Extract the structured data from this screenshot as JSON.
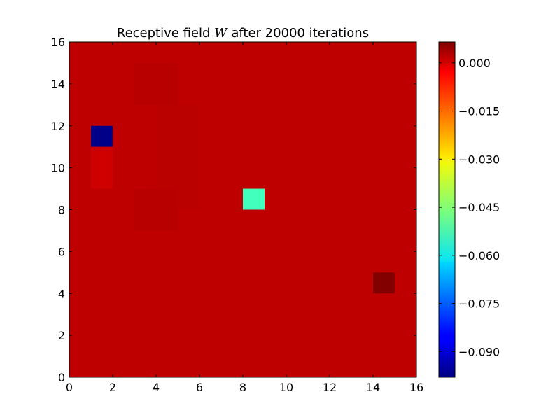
{
  "chart_data": {
    "type": "heatmap",
    "title_prefix": "Receptive field ",
    "title_variable": "W",
    "title_suffix": " after 20000 iterations",
    "xlabel": "",
    "ylabel": "",
    "xlim": [
      0,
      16
    ],
    "ylim": [
      0,
      16
    ],
    "x_ticks": [
      0,
      2,
      4,
      6,
      8,
      10,
      12,
      14,
      16
    ],
    "y_ticks": [
      0,
      2,
      4,
      6,
      8,
      10,
      12,
      14,
      16
    ],
    "background_value": 0.0,
    "cells": [
      {
        "x": 1,
        "y": 11,
        "value": -0.097
      },
      {
        "x": 8,
        "y": 8,
        "value": -0.052
      },
      {
        "x": 14,
        "y": 4,
        "value": 0.0062
      },
      {
        "x": 1,
        "y": 10,
        "value": -0.0015
      },
      {
        "x": 1,
        "y": 9,
        "value": -0.0015
      },
      {
        "x": 3,
        "y": 14,
        "value": 0.0007
      },
      {
        "x": 4,
        "y": 14,
        "value": 0.0007
      },
      {
        "x": 3,
        "y": 13,
        "value": 0.0007
      },
      {
        "x": 4,
        "y": 13,
        "value": 0.0007
      },
      {
        "x": 4,
        "y": 12,
        "value": 0.0004
      },
      {
        "x": 5,
        "y": 12,
        "value": 0.0004
      },
      {
        "x": 4,
        "y": 11,
        "value": 0.0004
      },
      {
        "x": 5,
        "y": 11,
        "value": 0.0004
      },
      {
        "x": 4,
        "y": 10,
        "value": 0.0004
      },
      {
        "x": 5,
        "y": 10,
        "value": 0.0004
      },
      {
        "x": 4,
        "y": 9,
        "value": 0.0004
      },
      {
        "x": 5,
        "y": 9,
        "value": 0.0004
      },
      {
        "x": 3,
        "y": 8,
        "value": 0.0007
      },
      {
        "x": 4,
        "y": 8,
        "value": 0.0007
      },
      {
        "x": 5,
        "y": 8,
        "value": 0.0004
      },
      {
        "x": 3,
        "y": 7,
        "value": 0.0007
      },
      {
        "x": 4,
        "y": 7,
        "value": 0.0007
      }
    ],
    "colorbar": {
      "colormap": "jet",
      "vmin": -0.098,
      "vmax": 0.0065,
      "ticks": [
        0.0,
        -0.015,
        -0.03,
        -0.045,
        -0.06,
        -0.075,
        -0.09
      ],
      "tick_labels": [
        "0.000",
        "−0.015",
        "−0.030",
        "−0.045",
        "−0.060",
        "−0.075",
        "−0.090"
      ]
    }
  }
}
